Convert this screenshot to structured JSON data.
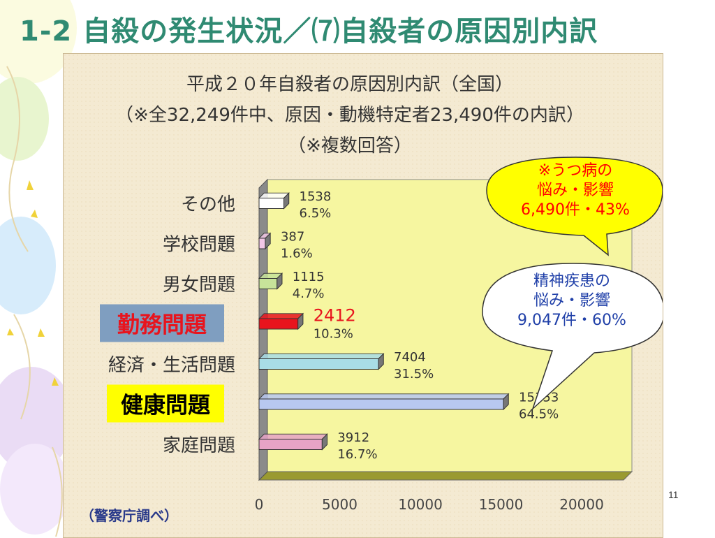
{
  "slide": {
    "title": "1-2 自殺の発生状況／⑺自殺者の原因別内訳",
    "page_number": "11"
  },
  "chart_data": {
    "type": "bar",
    "orientation": "horizontal",
    "title_lines": [
      "平成２０年自殺者の原因別内訳（全国）",
      "（※全32,249件中、原因・動機特定者23,490件の内訳）",
      "（※複数回答）"
    ],
    "source_note": "（警察庁調べ）",
    "categories": [
      "その他",
      "学校問題",
      "男女問題",
      "勤務問題",
      "経済・生活問題",
      "健康問題",
      "家庭問題"
    ],
    "values": [
      1538,
      387,
      1115,
      2412,
      7404,
      15153,
      3912
    ],
    "value_labels": [
      "1538",
      "387",
      "1115",
      "2412",
      "7404",
      "15153",
      "3912"
    ],
    "percent_labels": [
      "6.5%",
      "1.6%",
      "4.7%",
      "10.3%",
      "31.5%",
      "64.5%",
      "16.7%"
    ],
    "highlighted_categories": [
      "勤務問題",
      "健康問題"
    ],
    "xlim": [
      0,
      20000
    ],
    "xticks": [
      "0",
      "5000",
      "10000",
      "15000",
      "20000"
    ],
    "bar_colors": [
      "#ffffff",
      "#f2c6e6",
      "#c7e39a",
      "#e8141d",
      "#a9dde6",
      "#b8c8f0",
      "#e6a3c6"
    ],
    "grid": false,
    "annotations": [
      {
        "lines": [
          "※うつ病の",
          "悩み・影響",
          "6,490件・43%"
        ],
        "color": "#ff0000",
        "fill": "#ffff00"
      },
      {
        "lines": [
          "精神疾患の",
          "悩み・影響",
          "9,047件・60%"
        ],
        "color": "#1f3fa8",
        "fill": "#ffffff"
      }
    ]
  }
}
